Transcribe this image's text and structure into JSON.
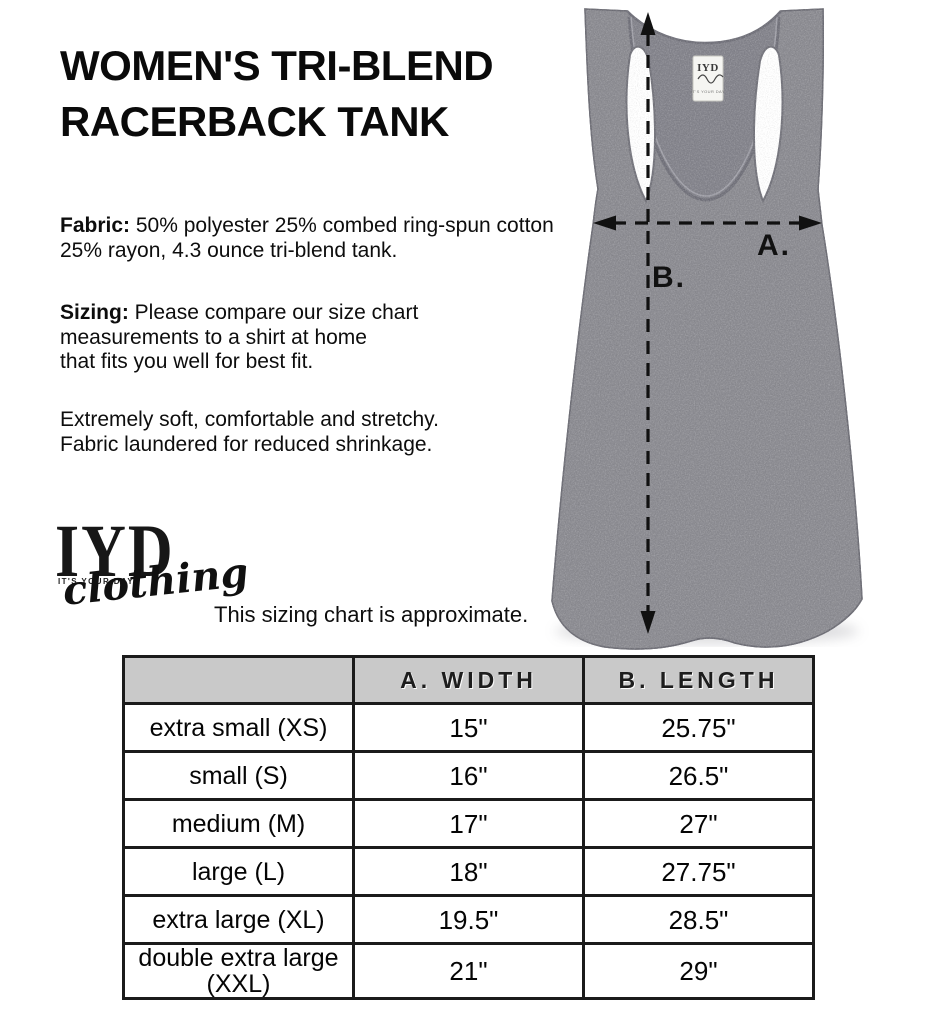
{
  "title": {
    "line1": "WOMEN'S TRI-BLEND",
    "line2": "RACERBACK TANK"
  },
  "paragraphs": {
    "fabric": {
      "label": "Fabric:",
      "line1": " 50% polyester 25% combed ring-spun cotton",
      "line2": "25% rayon, 4.3 ounce tri-blend tank."
    },
    "sizing": {
      "label": "Sizing:",
      "line1": " Please compare our size chart",
      "line2": "measurements to a shirt at home",
      "line3": "that fits you well for best fit."
    },
    "comfort": {
      "line1": "Extremely soft, comfortable and stretchy.",
      "line2": "Fabric laundered for reduced shrinkage."
    }
  },
  "logo": {
    "acronym": "IYD",
    "tagline": "IT'S YOUR DAY",
    "word": "clothing"
  },
  "note": "This sizing chart is approximate.",
  "diagram": {
    "width_label": "A.",
    "length_label": "B.",
    "tag_brand": "IYD",
    "tag_tiny": "IT'S YOUR DAY"
  },
  "size_chart": {
    "columns": [
      "",
      "A. WIDTH",
      "B. LENGTH"
    ],
    "rows": [
      {
        "size": "extra small (XS)",
        "width": "15\"",
        "length": "25.75\""
      },
      {
        "size": "small (S)",
        "width": "16\"",
        "length": "26.5\""
      },
      {
        "size": "medium (M)",
        "width": "17\"",
        "length": "27\""
      },
      {
        "size": "large (L)",
        "width": "18\"",
        "length": "27.75\""
      },
      {
        "size": "extra large (XL)",
        "width": "19.5\"",
        "length": "28.5\""
      },
      {
        "size": "double extra large (XXL)",
        "width": "21\"",
        "length": "29\""
      }
    ]
  },
  "colors": {
    "table_header_bg": "#c9c9c9",
    "table_border": "#1b1b1b",
    "shirt_gray": "#8c8c92",
    "shirt_gray_dark": "#84848c",
    "arrow_black": "#111111"
  }
}
